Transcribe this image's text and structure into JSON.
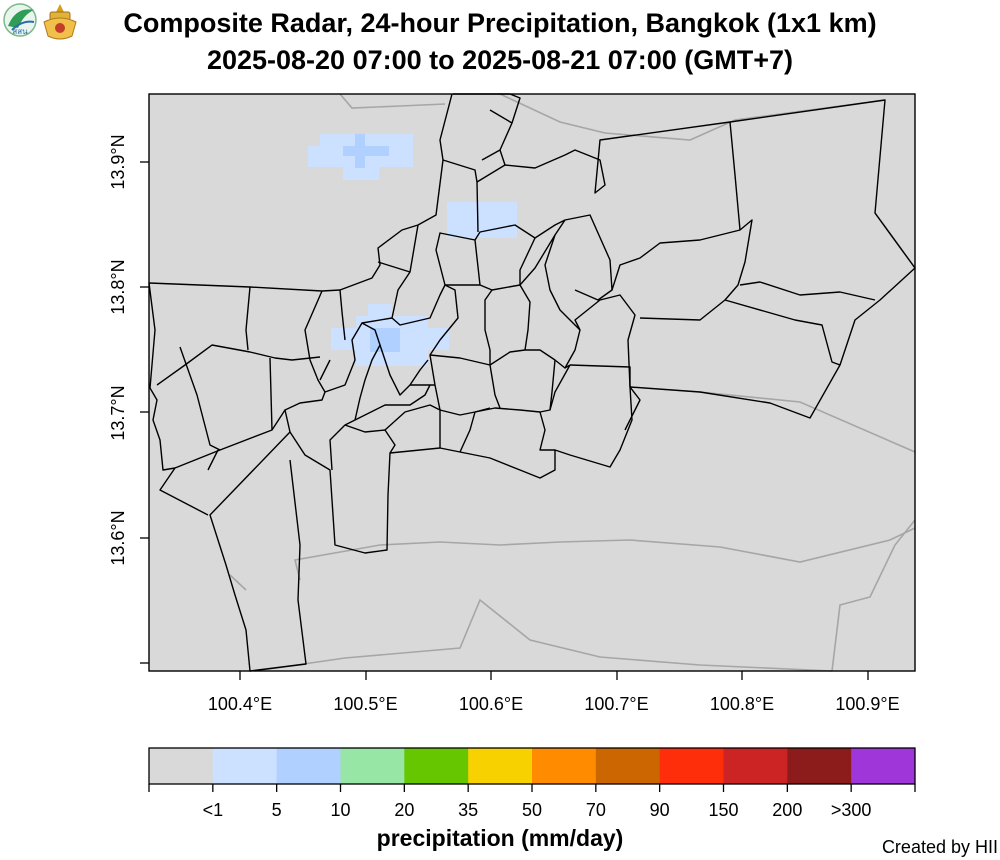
{
  "header": {
    "title_line1": "Composite Radar, 24-hour Precipitation, Bangkok (1x1 km)",
    "title_line2": "2025-08-20 07:00 to 2025-08-21 07:00 (GMT+7)",
    "logo_left": "สสน"
  },
  "map": {
    "background_color": "#d9d9d9",
    "district_line_color": "#000000",
    "province_line_color": "#a6a6a6",
    "lat_ticks": [
      {
        "value": 13.6,
        "label": "13.6°N"
      },
      {
        "value": 13.7,
        "label": "13.7°N"
      },
      {
        "value": 13.8,
        "label": "13.8°N"
      },
      {
        "value": 13.9,
        "label": "13.9°N"
      }
    ],
    "lon_ticks": [
      {
        "value": 100.4,
        "label": "100.4°E"
      },
      {
        "value": 100.5,
        "label": "100.5°E"
      },
      {
        "value": 100.6,
        "label": "100.6°E"
      },
      {
        "value": 100.7,
        "label": "100.7°E"
      },
      {
        "value": 100.8,
        "label": "100.8°E"
      },
      {
        "value": 100.9,
        "label": "100.9°E"
      }
    ]
  },
  "colorbar": {
    "title": "precipitation (mm/day)",
    "colors": [
      "#d9d9d9",
      "#cce0ff",
      "#b0d0ff",
      "#98e6a6",
      "#66c700",
      "#f7d100",
      "#ff8c00",
      "#cc6600",
      "#ff2e0a",
      "#cc2424",
      "#8c1c1c",
      "#9e36d9"
    ],
    "labels": [
      "<1",
      "5",
      "10",
      "20",
      "35",
      "50",
      "70",
      "90",
      "150",
      "200",
      ">300"
    ]
  },
  "footer": {
    "credit": "Created by HII"
  }
}
